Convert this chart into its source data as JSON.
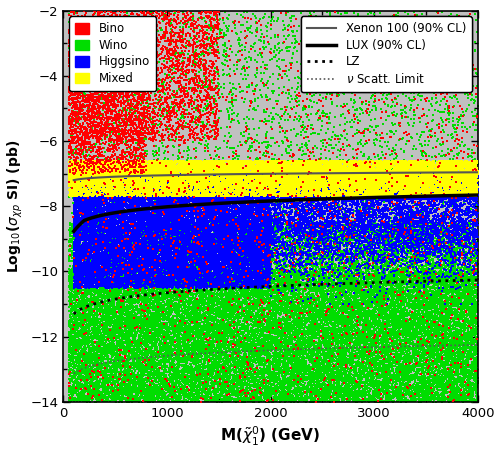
{
  "xlim": [
    0,
    4000
  ],
  "ylim": [
    -14,
    -2
  ],
  "yticks": [
    -14,
    -12,
    -10,
    -8,
    -6,
    -4,
    -2
  ],
  "xticks": [
    0,
    1000,
    2000,
    3000,
    4000
  ],
  "background_color": "#c0c0c0",
  "colors": {
    "bino": "#ff0000",
    "wino": "#00dd00",
    "higgsino": "#0000ff",
    "mixed": "#ffff00"
  },
  "seed": 12345
}
